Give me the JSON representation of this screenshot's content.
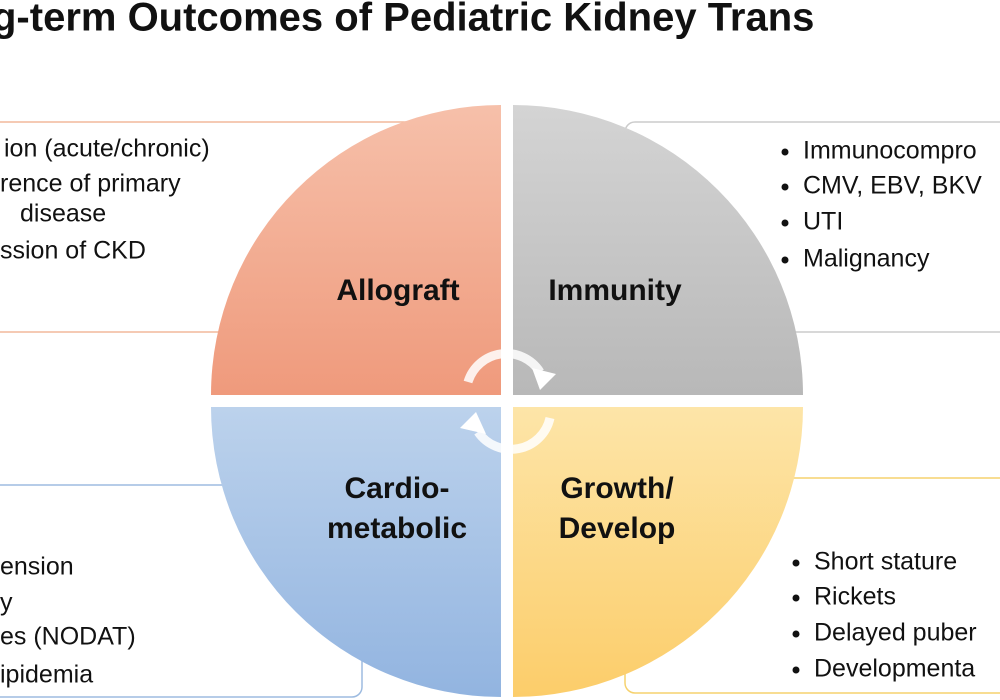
{
  "title": "g-term Outcomes of Pediatric Kidney Trans",
  "quadrants": [
    {
      "label": [
        "Allograft"
      ],
      "items": [
        "ion (acute/chronic)",
        "rence of primary",
        "disease",
        "ssion of CKD"
      ]
    },
    {
      "label": [
        "Immunity"
      ],
      "items": [
        "Immunocompro",
        "CMV, EBV, BKV",
        "UTI",
        "Malignancy"
      ]
    },
    {
      "label": [
        "Cardio-",
        "metabolic"
      ],
      "items": [
        "ension",
        "y",
        "es (NODAT)",
        "ipidemia"
      ]
    },
    {
      "label": [
        "Growth/",
        "Develop"
      ],
      "items": [
        "Short stature",
        "Rickets",
        "Delayed puber",
        "Developmenta"
      ]
    }
  ]
}
